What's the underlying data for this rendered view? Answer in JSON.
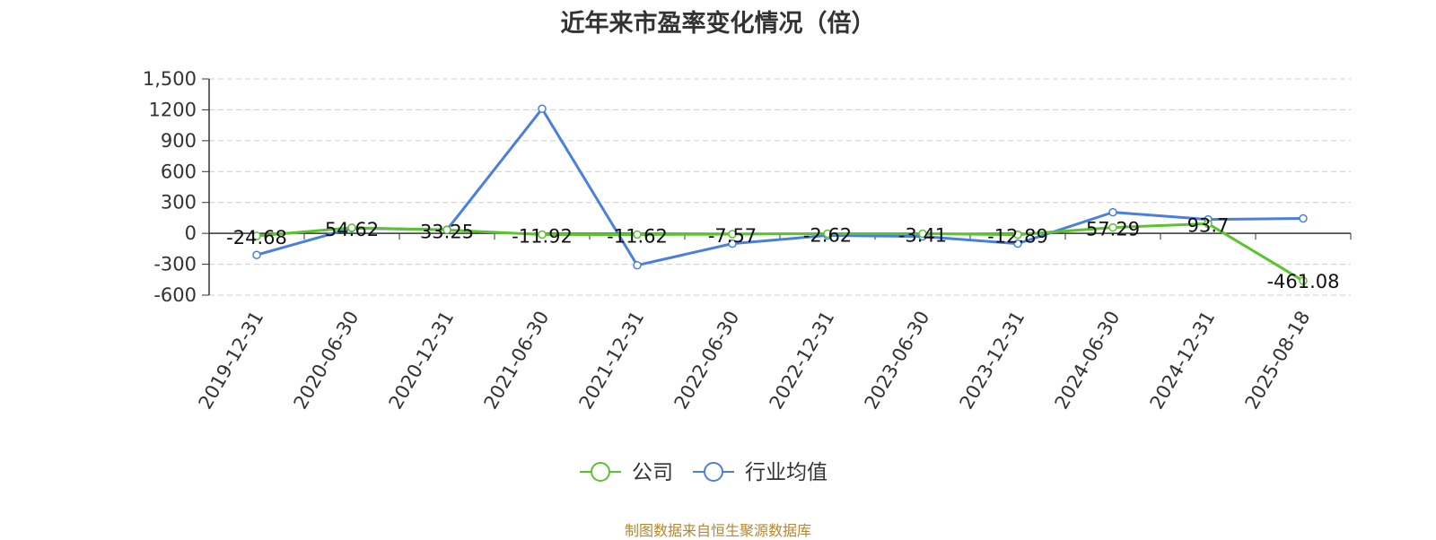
{
  "chart_data": {
    "type": "line",
    "title": "近年来市盈率变化情况（倍）",
    "xlabel": "",
    "ylabel": "",
    "categories": [
      "2019-12-31",
      "2020-06-30",
      "2020-12-31",
      "2021-06-30",
      "2021-12-31",
      "2022-06-30",
      "2022-12-31",
      "2023-06-30",
      "2023-12-31",
      "2024-06-30",
      "2024-12-31",
      "2025-08-18"
    ],
    "yticks": [
      "1,500",
      "1200",
      "900",
      "600",
      "300",
      "0",
      "-300",
      "-600"
    ],
    "ytick_values": [
      1500,
      1200,
      900,
      600,
      300,
      0,
      -300,
      -600
    ],
    "ylim": [
      -600,
      1500
    ],
    "grid": true,
    "legend_position": "bottom-center",
    "series": [
      {
        "name": "公司",
        "color": "#5bc42c",
        "values": [
          -24.68,
          54.62,
          33.25,
          -11.92,
          -11.62,
          -7.57,
          -2.62,
          -3.41,
          -12.89,
          57.29,
          93.7,
          -461.08
        ],
        "labels": [
          "-24.68",
          "54.62",
          "33.25",
          "-11.92",
          "-11.62",
          "-7.57",
          "-2.62",
          "-3.41",
          "-12.89",
          "57.29",
          "93.7",
          "-461.08"
        ]
      },
      {
        "name": "行业均值",
        "color": "#4a7fe0",
        "values": [
          -210,
          50,
          35,
          1210,
          -310,
          -100,
          -20,
          -30,
          -100,
          205,
          135,
          145
        ]
      }
    ]
  },
  "footer": {
    "source": "制图数据来自恒生聚源数据库"
  }
}
